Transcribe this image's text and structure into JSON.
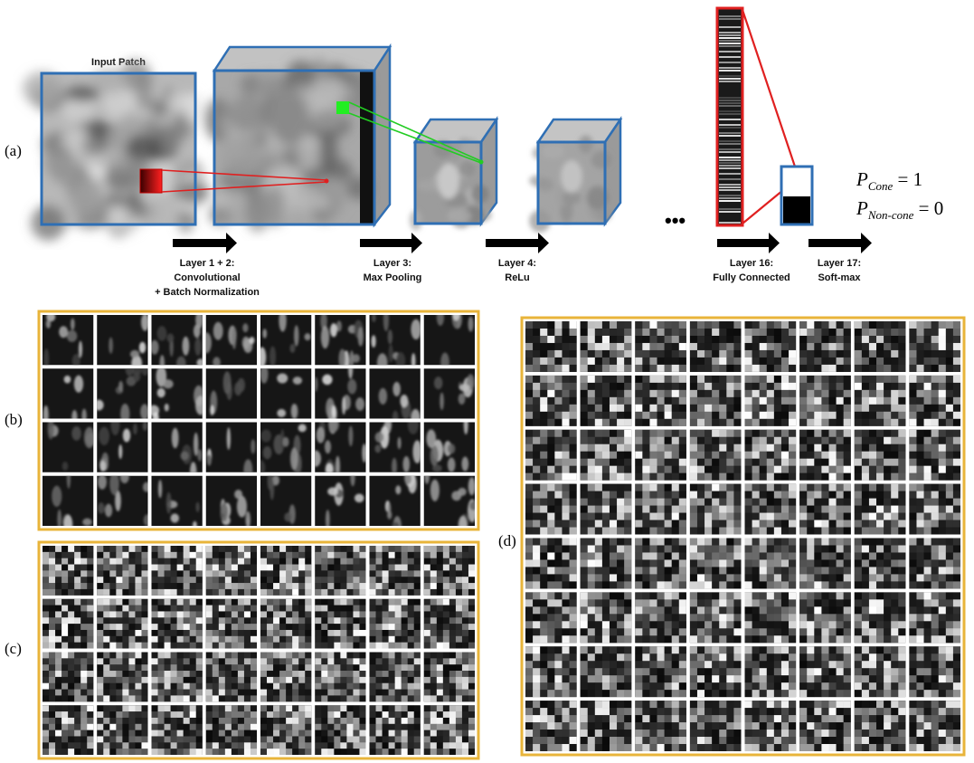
{
  "colors": {
    "cube_edge": "#2f6fb4",
    "cube_face": "#9a9a9a",
    "cube_top": "#b3b3b3",
    "red_link": "#e02020",
    "green_link": "#22cc22",
    "panel_border": "#e8b43a",
    "arrow": "#000000"
  },
  "panel_a": {
    "label": "(a)",
    "input_patch_label": "Input Patch",
    "dots": "•••",
    "layers": [
      {
        "line1": "Layer 1 + 2:",
        "line2": "Convolutional",
        "line3": "+ Batch Normalization"
      },
      {
        "line1": "Layer 3:",
        "line2": "Max Pooling"
      },
      {
        "line1": "Layer 4:",
        "line2": "ReLu"
      },
      {
        "line1": "Layer 16:",
        "line2": "Fully Connected"
      },
      {
        "line1": "Layer 17:",
        "line2": "Soft-max"
      }
    ],
    "prob_cone_sym": "P",
    "prob_cone_sub": "Cone",
    "prob_cone_val": " = 1",
    "prob_noncone_sym": "P",
    "prob_noncone_sub": "Non-cone",
    "prob_noncone_val": " = 0"
  },
  "panel_b": {
    "label": "(b)",
    "rows": 4,
    "cols": 8
  },
  "panel_c": {
    "label": "(c)",
    "rows": 4,
    "cols": 8
  },
  "panel_d": {
    "label": "(d)",
    "rows": 8,
    "cols": 8
  }
}
